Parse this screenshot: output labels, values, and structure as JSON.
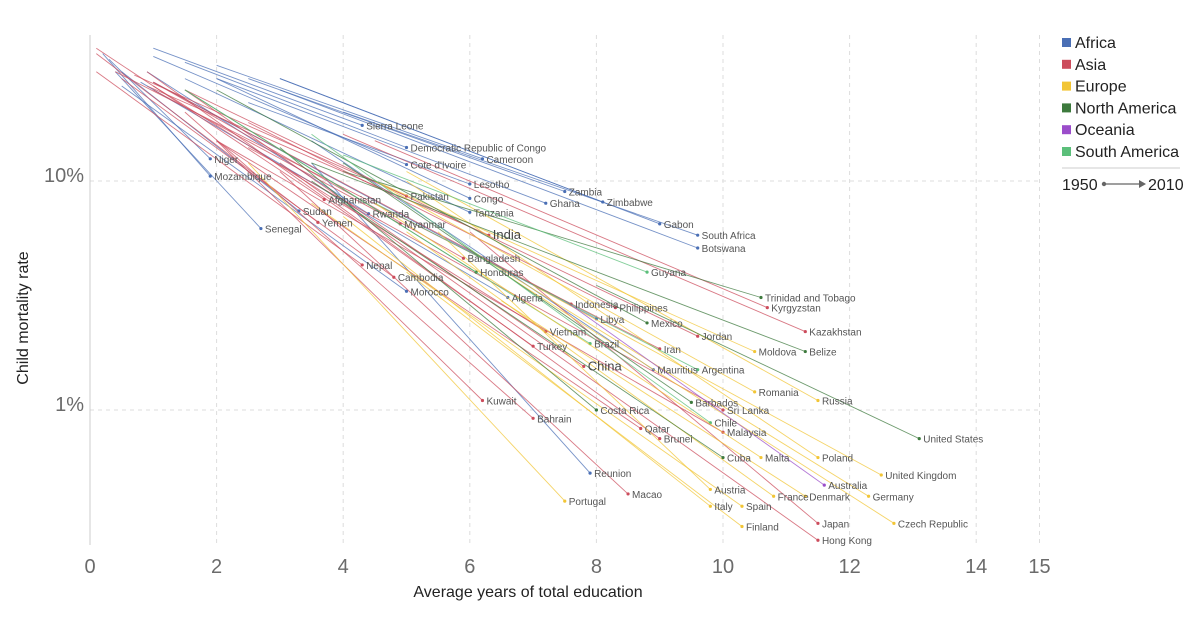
{
  "chart_data": {
    "type": "line",
    "xlabel": "Average years of total education",
    "ylabel": "Child mortality rate",
    "x_ticks": [
      "0",
      "2",
      "4",
      "6",
      "8",
      "10",
      "12",
      "14",
      "15"
    ],
    "x_tick_values": [
      0,
      2,
      4,
      6,
      8,
      10,
      12,
      14,
      15
    ],
    "y_ticks": [
      "10%",
      "1%"
    ],
    "y_tick_values": [
      10,
      1
    ],
    "y_scale": "log",
    "xlim": [
      0,
      15
    ],
    "ylim": [
      0.2,
      40
    ],
    "grid": true,
    "legend_position": "top-right",
    "legend": [
      {
        "name": "Africa",
        "color": "#4a6fb5"
      },
      {
        "name": "Asia",
        "color": "#cc4c5c"
      },
      {
        "name": "Europe",
        "color": "#f2c535"
      },
      {
        "name": "North America",
        "color": "#3d7a3d"
      },
      {
        "name": "Oceania",
        "color": "#9b4dca"
      },
      {
        "name": "South America",
        "color": "#5bbf7a"
      }
    ],
    "period": {
      "start": "1950",
      "end": "2010"
    },
    "series": [
      {
        "name": "Niger",
        "region": "Africa",
        "x": [
          0.3,
          1.9
        ],
        "y": [
          34,
          12.5
        ]
      },
      {
        "name": "Mozambique",
        "region": "Africa",
        "x": [
          0.2,
          1.9
        ],
        "y": [
          36,
          10.5
        ]
      },
      {
        "name": "Senegal",
        "region": "Africa",
        "x": [
          0.4,
          2.7
        ],
        "y": [
          30,
          6.2
        ]
      },
      {
        "name": "Sierra Leone",
        "region": "Africa",
        "x": [
          1.0,
          4.3
        ],
        "y": [
          38,
          17.5
        ]
      },
      {
        "name": "Democratic Republic of Congo",
        "region": "Africa",
        "x": [
          1.5,
          5.0
        ],
        "y": [
          33,
          14
        ]
      },
      {
        "name": "Cote d'Ivoire",
        "region": "Africa",
        "x": [
          1.0,
          5.0
        ],
        "y": [
          35,
          11.8
        ]
      },
      {
        "name": "Cameroon",
        "region": "Africa",
        "x": [
          2.0,
          6.2
        ],
        "y": [
          32,
          12.5
        ]
      },
      {
        "name": "Zambia",
        "region": "Africa",
        "x": [
          2.5,
          7.5
        ],
        "y": [
          28,
          9
        ]
      },
      {
        "name": "Zimbabwe",
        "region": "Africa",
        "x": [
          3.0,
          8.1
        ],
        "y": [
          28,
          8.1
        ]
      },
      {
        "name": "Ghana",
        "region": "Africa",
        "x": [
          2.0,
          7.2
        ],
        "y": [
          28,
          8
        ]
      },
      {
        "name": "Sudan",
        "region": "Africa",
        "x": [
          0.5,
          3.3
        ],
        "y": [
          30,
          7.4
        ]
      },
      {
        "name": "Rwanda",
        "region": "Africa",
        "x": [
          0.9,
          4.4
        ],
        "y": [
          30,
          7.2
        ]
      },
      {
        "name": "Lesotho",
        "region": "Africa",
        "x": [
          2.5,
          6.0
        ],
        "y": [
          22,
          9.7
        ]
      },
      {
        "name": "Congo",
        "region": "Africa",
        "x": [
          2.0,
          6.0
        ],
        "y": [
          28,
          8.4
        ]
      },
      {
        "name": "Tanzania",
        "region": "Africa",
        "x": [
          1.5,
          6.0
        ],
        "y": [
          28,
          7.3
        ]
      },
      {
        "name": "Gabon",
        "region": "Africa",
        "x": [
          3.0,
          9.0
        ],
        "y": [
          28,
          6.5
        ]
      },
      {
        "name": "South Africa",
        "region": "Africa",
        "x": [
          4.0,
          9.6
        ],
        "y": [
          20,
          5.8
        ]
      },
      {
        "name": "Botswana",
        "region": "Africa",
        "x": [
          3.0,
          9.6
        ],
        "y": [
          25,
          5.1
        ]
      },
      {
        "name": "Morocco",
        "region": "Africa",
        "x": [
          0.5,
          5.0
        ],
        "y": [
          26,
          3.3
        ]
      },
      {
        "name": "Algeria",
        "region": "Africa",
        "x": [
          0.8,
          6.6
        ],
        "y": [
          27,
          3.1
        ]
      },
      {
        "name": "Libya",
        "region": "Africa",
        "x": [
          1.0,
          8.0
        ],
        "y": [
          27,
          2.5
        ]
      },
      {
        "name": "Mauritius",
        "region": "Africa",
        "x": [
          3.5,
          8.9
        ],
        "y": [
          15,
          1.5
        ]
      },
      {
        "name": "Reunion",
        "region": "Africa",
        "x": [
          3.5,
          7.9
        ],
        "y": [
          12,
          0.53
        ]
      },
      {
        "name": "Afghanistan",
        "region": "Asia",
        "x": [
          0.1,
          3.7
        ],
        "y": [
          38,
          8.3
        ]
      },
      {
        "name": "Pakistan",
        "region": "Asia",
        "x": [
          0.7,
          5.0
        ],
        "y": [
          29,
          8.6
        ]
      },
      {
        "name": "Yemen",
        "region": "Asia",
        "x": [
          0.1,
          3.6
        ],
        "y": [
          36,
          6.6
        ]
      },
      {
        "name": "Myanmar",
        "region": "Asia",
        "x": [
          1.0,
          4.9
        ],
        "y": [
          25,
          6.5
        ]
      },
      {
        "name": "India",
        "region": "Asia",
        "x": [
          0.9,
          6.3
        ],
        "y": [
          26,
          5.8
        ]
      },
      {
        "name": "Bangladesh",
        "region": "Asia",
        "x": [
          1.0,
          5.9
        ],
        "y": [
          27,
          4.6
        ]
      },
      {
        "name": "Nepal",
        "region": "Asia",
        "x": [
          0.1,
          4.3
        ],
        "y": [
          30,
          4.3
        ]
      },
      {
        "name": "Cambodia",
        "region": "Asia",
        "x": [
          0.5,
          4.8
        ],
        "y": [
          28,
          3.8
        ]
      },
      {
        "name": "Indonesia",
        "region": "Asia",
        "x": [
          1.0,
          7.6
        ],
        "y": [
          27,
          2.9
        ]
      },
      {
        "name": "Philippines",
        "region": "Asia",
        "x": [
          2.5,
          8.3
        ],
        "y": [
          18,
          2.8
        ]
      },
      {
        "name": "Vietnam",
        "region": "Asia",
        "x": [
          1.0,
          7.2
        ],
        "y": [
          26,
          2.2
        ]
      },
      {
        "name": "Turkey",
        "region": "Asia",
        "x": [
          0.9,
          7.0
        ],
        "y": [
          30,
          1.9
        ]
      },
      {
        "name": "Iran",
        "region": "Asia",
        "x": [
          0.4,
          9.0
        ],
        "y": [
          30,
          1.85
        ]
      },
      {
        "name": "Jordan",
        "region": "Asia",
        "x": [
          1.5,
          9.6
        ],
        "y": [
          25,
          2.1
        ]
      },
      {
        "name": "China",
        "region": "Asia",
        "x": [
          1.5,
          7.8
        ],
        "y": [
          25,
          1.55
        ]
      },
      {
        "name": "Kuwait",
        "region": "Asia",
        "x": [
          2.0,
          6.2
        ],
        "y": [
          15,
          1.1
        ]
      },
      {
        "name": "Bahrain",
        "region": "Asia",
        "x": [
          1.5,
          7.0
        ],
        "y": [
          20,
          0.92
        ]
      },
      {
        "name": "Qatar",
        "region": "Asia",
        "x": [
          2.0,
          8.7
        ],
        "y": [
          15,
          0.83
        ]
      },
      {
        "name": "Brunei",
        "region": "Asia",
        "x": [
          3.0,
          9.0
        ],
        "y": [
          12,
          0.75
        ]
      },
      {
        "name": "Sri Lanka",
        "region": "Asia",
        "x": [
          2.5,
          10.0
        ],
        "y": [
          14,
          1.0
        ]
      },
      {
        "name": "Malaysia",
        "region": "Asia",
        "x": [
          2.0,
          10.0
        ],
        "y": [
          15,
          0.8
        ]
      },
      {
        "name": "Macao",
        "region": "Asia",
        "x": [
          3.0,
          8.5
        ],
        "y": [
          11,
          0.43
        ]
      },
      {
        "name": "Kazakhstan",
        "region": "Asia",
        "x": [
          4.0,
          11.3
        ],
        "y": [
          16,
          2.2
        ]
      },
      {
        "name": "Kyrgyzstan",
        "region": "Asia",
        "x": [
          4.5,
          10.7
        ],
        "y": [
          15,
          2.8
        ]
      },
      {
        "name": "Japan",
        "region": "Asia",
        "x": [
          6.0,
          11.5
        ],
        "y": [
          6,
          0.32
        ]
      },
      {
        "name": "Hong Kong",
        "region": "Asia",
        "x": [
          4.0,
          11.5
        ],
        "y": [
          8,
          0.27
        ]
      },
      {
        "name": "Portugal",
        "region": "Europe",
        "x": [
          2.5,
          7.5
        ],
        "y": [
          12,
          0.4
        ]
      },
      {
        "name": "Romania",
        "region": "Europe",
        "x": [
          4.5,
          10.5
        ],
        "y": [
          10,
          1.2
        ]
      },
      {
        "name": "Moldova",
        "region": "Europe",
        "x": [
          4.5,
          10.5
        ],
        "y": [
          10,
          1.8
        ]
      },
      {
        "name": "Russia",
        "region": "Europe",
        "x": [
          5.0,
          11.5
        ],
        "y": [
          11,
          1.1
        ]
      },
      {
        "name": "Poland",
        "region": "Europe",
        "x": [
          5.0,
          11.5
        ],
        "y": [
          10,
          0.62
        ]
      },
      {
        "name": "United Kingdom",
        "region": "Europe",
        "x": [
          7.0,
          12.5
        ],
        "y": [
          3.5,
          0.52
        ]
      },
      {
        "name": "Germany",
        "region": "Europe",
        "x": [
          6.0,
          12.3
        ],
        "y": [
          5,
          0.42
        ]
      },
      {
        "name": "Czech Republic",
        "region": "Europe",
        "x": [
          6.5,
          12.7
        ],
        "y": [
          4,
          0.32
        ]
      },
      {
        "name": "France",
        "region": "Europe",
        "x": [
          5.0,
          10.8
        ],
        "y": [
          6,
          0.42
        ]
      },
      {
        "name": "Denmark",
        "region": "Europe",
        "x": [
          6.5,
          11.3
        ],
        "y": [
          3,
          0.42
        ]
      },
      {
        "name": "Austria",
        "region": "Europe",
        "x": [
          5.5,
          9.8
        ],
        "y": [
          6,
          0.45
        ]
      },
      {
        "name": "Italy",
        "region": "Europe",
        "x": [
          4.0,
          9.8
        ],
        "y": [
          7,
          0.38
        ]
      },
      {
        "name": "Spain",
        "region": "Europe",
        "x": [
          3.5,
          10.3
        ],
        "y": [
          8,
          0.38
        ]
      },
      {
        "name": "Finland",
        "region": "Europe",
        "x": [
          5.0,
          10.3
        ],
        "y": [
          4,
          0.31
        ]
      },
      {
        "name": "United States",
        "region": "North America",
        "x": [
          8.0,
          13.1
        ],
        "y": [
          3.5,
          0.75
        ]
      },
      {
        "name": "Mexico",
        "region": "North America",
        "x": [
          2.0,
          8.8
        ],
        "y": [
          25,
          2.4
        ]
      },
      {
        "name": "Cuba",
        "region": "North America",
        "x": [
          3.5,
          10.0
        ],
        "y": [
          10,
          0.62
        ]
      },
      {
        "name": "Barbados",
        "region": "North America",
        "x": [
          4.0,
          9.5
        ],
        "y": [
          12,
          1.08
        ]
      },
      {
        "name": "Costa Rica",
        "region": "North America",
        "x": [
          3.0,
          8.0
        ],
        "y": [
          14,
          1.0
        ]
      },
      {
        "name": "Honduras",
        "region": "North America",
        "x": [
          1.5,
          6.1
        ],
        "y": [
          25,
          4.0
        ]
      },
      {
        "name": "Trinidad and Tobago",
        "region": "North America",
        "x": [
          4.0,
          10.6
        ],
        "y": [
          11,
          3.1
        ]
      },
      {
        "name": "Belize",
        "region": "North America",
        "x": [
          3.5,
          11.3
        ],
        "y": [
          12,
          1.8
        ]
      },
      {
        "name": "Australia",
        "region": "Oceania",
        "x": [
          7.5,
          11.6
        ],
        "y": [
          3.0,
          0.47
        ]
      },
      {
        "name": "Brazil",
        "region": "South America",
        "x": [
          1.5,
          7.9
        ],
        "y": [
          25,
          1.95
        ]
      },
      {
        "name": "Argentina",
        "region": "South America",
        "x": [
          4.5,
          9.6
        ],
        "y": [
          8,
          1.5
        ]
      },
      {
        "name": "Chile",
        "region": "South America",
        "x": [
          3.5,
          9.8
        ],
        "y": [
          16,
          0.88
        ]
      },
      {
        "name": "Guyana",
        "region": "South America",
        "x": [
          4.0,
          8.8
        ],
        "y": [
          13,
          4.0
        ]
      },
      {
        "name": "Malta",
        "region": "Europe",
        "x": [
          4.5,
          10.6
        ],
        "y": [
          8,
          0.62
        ]
      }
    ]
  }
}
